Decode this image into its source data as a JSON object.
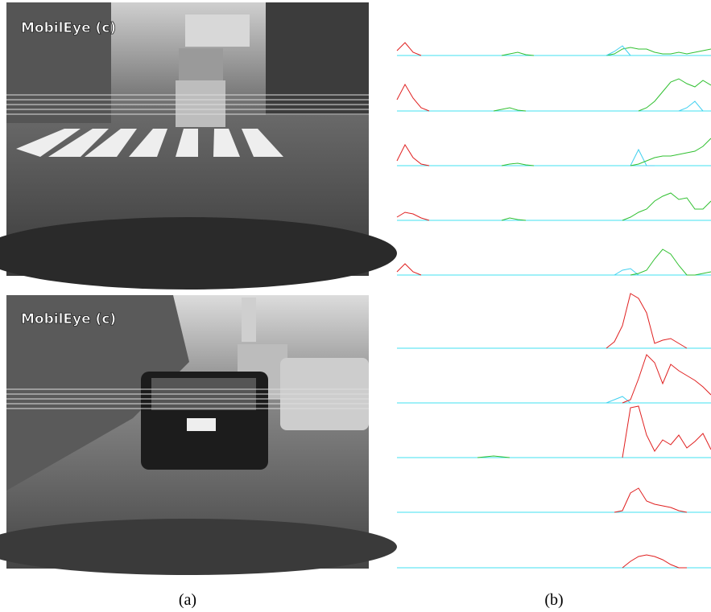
{
  "figure": {
    "photo_a_watermark": "MobilEye (c)",
    "photo_b_watermark": "MobilEye (c)",
    "caption_a": "(a)",
    "caption_b": "(b)",
    "baseline_color": "#40e0f0",
    "panels": [
      {
        "series": [
          {
            "color": "#e02020",
            "x": [
              0,
              1,
              2,
              3
            ],
            "values": [
              6,
              16,
              4,
              0
            ]
          },
          {
            "color": "#30c030",
            "x": [
              13,
              14,
              15,
              16,
              17
            ],
            "values": [
              0,
              2,
              4,
              1,
              0
            ]
          },
          {
            "color": "#30c030",
            "x": [
              26,
              27,
              28,
              29,
              30,
              31,
              32,
              33,
              34,
              35,
              36,
              37,
              38,
              39
            ],
            "values": [
              0,
              2,
              8,
              10,
              8,
              8,
              4,
              2,
              2,
              4,
              2,
              4,
              6,
              8
            ]
          },
          {
            "color": "#40d0f0",
            "x": [
              26,
              27,
              28,
              29
            ],
            "values": [
              0,
              5,
              12,
              0
            ]
          }
        ]
      },
      {
        "series": [
          {
            "color": "#e02020",
            "x": [
              0,
              1,
              2,
              3,
              4
            ],
            "values": [
              14,
              33,
              16,
              4,
              0
            ]
          },
          {
            "color": "#30c030",
            "x": [
              12,
              13,
              14,
              15,
              16
            ],
            "values": [
              0,
              2,
              4,
              1,
              0
            ]
          },
          {
            "color": "#30c030",
            "x": [
              30,
              31,
              32,
              33,
              34,
              35,
              36,
              37,
              38,
              39
            ],
            "values": [
              0,
              4,
              12,
              24,
              36,
              40,
              34,
              30,
              38,
              32
            ]
          },
          {
            "color": "#40d0f0",
            "x": [
              35,
              36,
              37,
              38
            ],
            "values": [
              0,
              4,
              12,
              0
            ]
          }
        ]
      },
      {
        "series": [
          {
            "color": "#e02020",
            "x": [
              0,
              1,
              2,
              3,
              4
            ],
            "values": [
              6,
              26,
              10,
              2,
              0
            ]
          },
          {
            "color": "#30c030",
            "x": [
              13,
              14,
              15,
              16,
              17
            ],
            "values": [
              0,
              2,
              3,
              1,
              0
            ]
          },
          {
            "color": "#40d0f0",
            "x": [
              29,
              30,
              31,
              32
            ],
            "values": [
              0,
              20,
              0,
              0
            ]
          },
          {
            "color": "#30c030",
            "x": [
              29,
              30,
              31,
              32,
              33,
              34,
              35,
              36,
              37,
              38,
              39
            ],
            "values": [
              0,
              2,
              6,
              10,
              12,
              12,
              14,
              16,
              18,
              24,
              34
            ]
          }
        ]
      },
      {
        "series": [
          {
            "color": "#e02020",
            "x": [
              0,
              1,
              2,
              3,
              4
            ],
            "values": [
              4,
              10,
              8,
              3,
              0
            ]
          },
          {
            "color": "#30c030",
            "x": [
              13,
              14,
              15,
              16
            ],
            "values": [
              0,
              3,
              1,
              0
            ]
          },
          {
            "color": "#30c030",
            "x": [
              28,
              29,
              30,
              31,
              32,
              33,
              34,
              35,
              36,
              37,
              38,
              39
            ],
            "values": [
              0,
              4,
              10,
              14,
              24,
              30,
              34,
              26,
              28,
              14,
              14,
              24
            ]
          }
        ]
      },
      {
        "series": [
          {
            "color": "#e02020",
            "x": [
              0,
              1,
              2,
              3
            ],
            "values": [
              4,
              14,
              4,
              0
            ]
          },
          {
            "color": "#40d0f0",
            "x": [
              27,
              28,
              29,
              30
            ],
            "values": [
              0,
              6,
              8,
              0
            ]
          },
          {
            "color": "#30c030",
            "x": [
              29,
              30,
              31,
              32,
              33,
              34,
              35,
              36,
              37,
              38,
              39
            ],
            "values": [
              0,
              2,
              6,
              20,
              32,
              26,
              12,
              0,
              0,
              2,
              4
            ]
          }
        ]
      },
      {
        "series": [
          {
            "color": "#e02020",
            "x": [
              26,
              27,
              28,
              29,
              30,
              31,
              32,
              33,
              34,
              35,
              36
            ],
            "values": [
              0,
              8,
              28,
              68,
              62,
              44,
              6,
              10,
              12,
              6,
              0
            ]
          }
        ]
      },
      {
        "series": [
          {
            "color": "#40d0f0",
            "x": [
              26,
              27,
              28,
              29
            ],
            "values": [
              0,
              4,
              8,
              0
            ]
          },
          {
            "color": "#e02020",
            "x": [
              28,
              29,
              30,
              31,
              32,
              33,
              34,
              35,
              36,
              37,
              38,
              39
            ],
            "values": [
              0,
              4,
              30,
              60,
              50,
              24,
              48,
              40,
              34,
              28,
              20,
              10
            ]
          }
        ]
      },
      {
        "series": [
          {
            "color": "#30c030",
            "x": [
              10,
              11,
              12,
              13,
              14
            ],
            "values": [
              0,
              1,
              2,
              1,
              0
            ]
          },
          {
            "color": "#e02020",
            "x": [
              28,
              29,
              30,
              31,
              32,
              33,
              34,
              35,
              36,
              37,
              38,
              39
            ],
            "values": [
              0,
              62,
              64,
              28,
              8,
              22,
              16,
              28,
              12,
              20,
              30,
              10
            ]
          }
        ]
      },
      {
        "series": [
          {
            "color": "#e02020",
            "x": [
              27,
              28,
              29,
              30,
              31,
              32,
              33,
              34,
              35,
              36
            ],
            "values": [
              0,
              2,
              24,
              30,
              14,
              10,
              8,
              6,
              2,
              0
            ]
          }
        ]
      },
      {
        "series": [
          {
            "color": "#e02020",
            "x": [
              28,
              29,
              30,
              31,
              32,
              33,
              34,
              35,
              36
            ],
            "values": [
              0,
              8,
              14,
              16,
              14,
              10,
              4,
              0,
              0
            ]
          }
        ]
      }
    ]
  }
}
